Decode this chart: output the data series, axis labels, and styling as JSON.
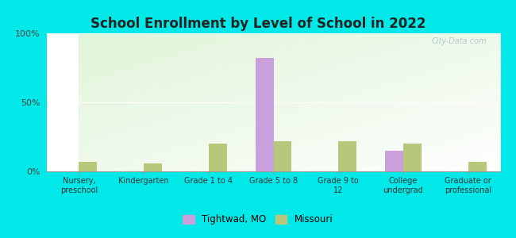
{
  "title": "School Enrollment by Level of School in 2022",
  "categories": [
    "Nursery,\npreschool",
    "Kindergarten",
    "Grade 1 to 4",
    "Grade 5 to 8",
    "Grade 9 to\n12",
    "College\nundergrad",
    "Graduate or\nprofessional"
  ],
  "tightwad": [
    0,
    0,
    0,
    82,
    0,
    15,
    0
  ],
  "missouri": [
    7,
    6,
    20,
    22,
    22,
    20,
    7
  ],
  "tightwad_color": "#c9a0dc",
  "missouri_color": "#b8c87a",
  "bg_outer": "#00e8e8",
  "bg_inner": "#e0f0d8",
  "title_fontsize": 12,
  "ylim": [
    0,
    100
  ],
  "yticks": [
    0,
    50,
    100
  ],
  "ytick_labels": [
    "0%",
    "50%",
    "100%"
  ],
  "bar_width": 0.28,
  "legend_tightwad": "Tightwad, MO",
  "legend_missouri": "Missouri"
}
